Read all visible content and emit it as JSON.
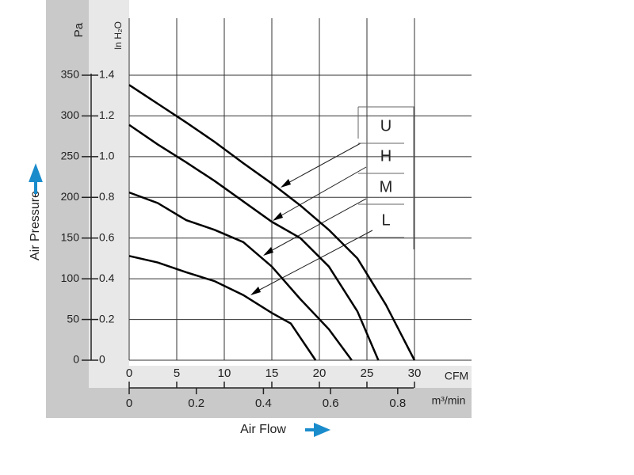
{
  "chart_data": {
    "type": "line",
    "y_label": "Air Pressure",
    "y_unit": "Pa",
    "y2_unit": "In H₂O",
    "x_label": "Air Flow",
    "x_unit": "CFM",
    "x2_unit": "m³/min",
    "xlim": [
      0,
      36
    ],
    "xticks": [
      0,
      5,
      10,
      15,
      20,
      25,
      30
    ],
    "x2lim": [
      0,
      1.02
    ],
    "x2ticks": [
      0,
      0.2,
      0.4,
      0.6,
      0.8
    ],
    "ylim": [
      0,
      420
    ],
    "yticks": [
      0,
      50,
      100,
      150,
      200,
      250,
      300,
      350
    ],
    "y2lim": [
      0,
      1.68
    ],
    "y2ticks": [
      0,
      0.2,
      0.4,
      0.6,
      0.8,
      {
        "value": 1,
        "label": "1.0"
      },
      1.2,
      1.4
    ],
    "grid": true,
    "series": [
      {
        "name": "U",
        "color": "#000000",
        "x": [
          0,
          3,
          6,
          9,
          12,
          15,
          18,
          21,
          24,
          27,
          30
        ],
        "values": [
          338,
          315,
          292,
          268,
          242,
          217,
          190,
          160,
          125,
          68,
          0
        ]
      },
      {
        "name": "H",
        "color": "#000000",
        "x": [
          0,
          3,
          6,
          9,
          12,
          15,
          18,
          21,
          24,
          26.2
        ],
        "values": [
          289,
          265,
          243,
          220,
          195,
          170,
          150,
          115,
          60,
          0
        ]
      },
      {
        "name": "M",
        "color": "#000000",
        "x": [
          0,
          3,
          6,
          9,
          12,
          15,
          18,
          21,
          23.4
        ],
        "values": [
          206,
          193,
          172,
          160,
          145,
          115,
          75,
          38,
          0
        ]
      },
      {
        "name": "L",
        "color": "#000000",
        "x": [
          0,
          3,
          6,
          9,
          12,
          15,
          17,
          19.6
        ],
        "values": [
          128,
          120,
          108,
          97,
          80,
          58,
          45,
          0
        ]
      }
    ]
  }
}
